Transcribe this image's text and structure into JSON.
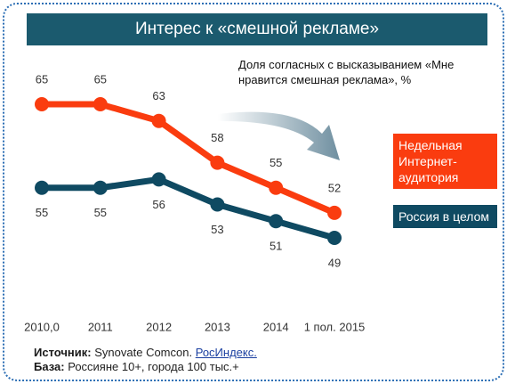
{
  "chart_data": {
    "type": "line",
    "title": "Интерес к «смешной рекламе»",
    "subtitle": "Доля согласных с высказыванием «Мне нравится смешная реклама», %",
    "categories": [
      "2010,0",
      "2011",
      "2012",
      "2013",
      "2014",
      "1 пол. 2015"
    ],
    "series": [
      {
        "name": "Недельная Интернет-аудитория",
        "color": "#fa3c0f",
        "values": [
          65,
          65,
          63,
          58,
          55,
          52
        ]
      },
      {
        "name": "Россия в целом",
        "color": "#0f4a62",
        "values": [
          55,
          55,
          56,
          53,
          51,
          49
        ]
      }
    ],
    "legend": "right"
  },
  "footer": {
    "source": {
      "label": "Источник:",
      "text": "Synovate Comcon.",
      "link": "РосИндекс."
    },
    "base": {
      "label": "База:",
      "text": "Россияне 10+, города 100 тыс.+"
    }
  }
}
